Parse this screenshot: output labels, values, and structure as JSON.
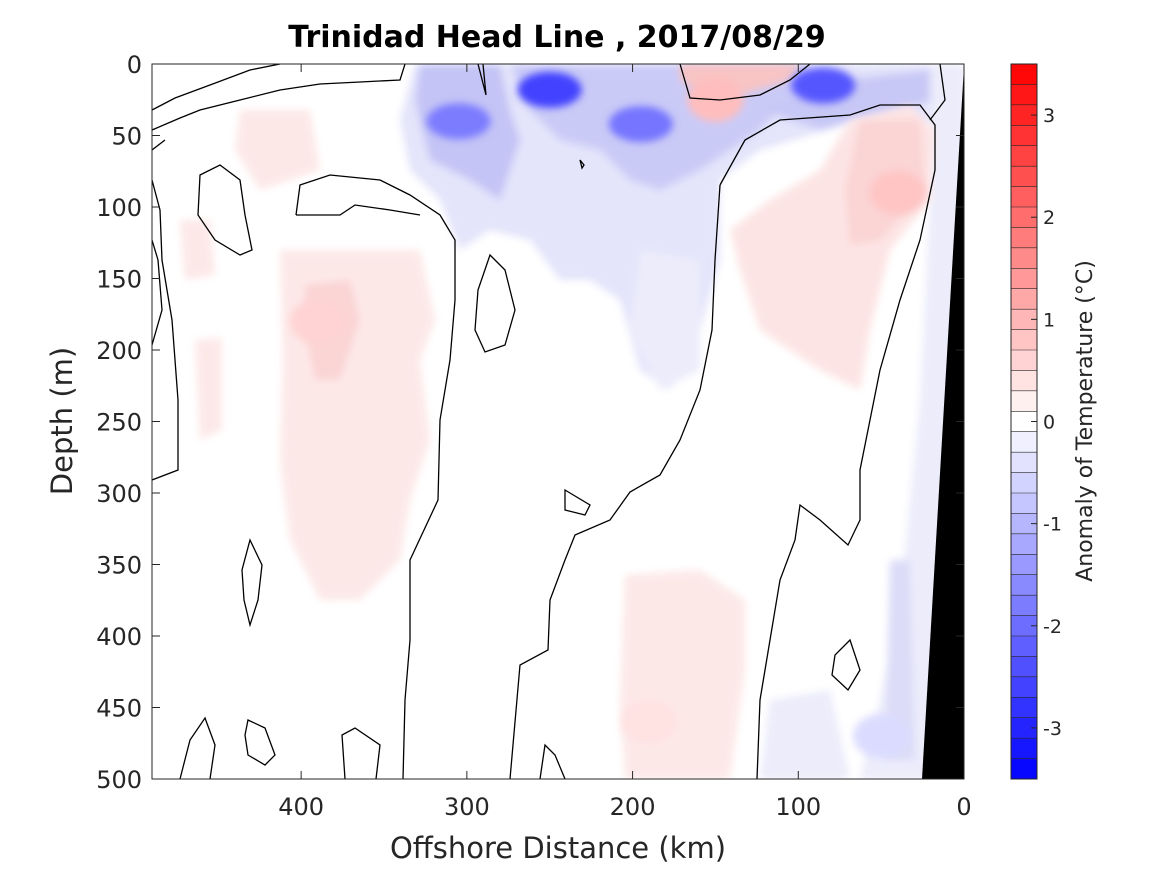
{
  "chart_data": {
    "type": "heatmap",
    "title": "Trinidad Head Line , 2017/08/29",
    "xlabel": "Offshore Distance (km)",
    "ylabel": "Depth (m)",
    "xlim": [
      490,
      0
    ],
    "ylim": [
      0,
      500
    ],
    "x_reversed": true,
    "y_reversed": true,
    "xticks": [
      400,
      300,
      200,
      100,
      0
    ],
    "yticks": [
      0,
      50,
      100,
      150,
      200,
      250,
      300,
      350,
      400,
      450,
      500
    ],
    "colorbar": {
      "label": "Anomaly of Temperature (°C)",
      "range": [
        -3.5,
        3.5
      ],
      "ticks": [
        3,
        2,
        1,
        0,
        -1,
        -2,
        -3
      ],
      "levels": 35,
      "cmap": "blue-white-red"
    },
    "contour_level": 0,
    "bottom_fill": "black",
    "anomaly_features": [
      {
        "x": 250,
        "depth": 18,
        "value": -2.6
      },
      {
        "x": 305,
        "depth": 40,
        "value": -1.8
      },
      {
        "x": 195,
        "depth": 42,
        "value": -1.9
      },
      {
        "x": 85,
        "depth": 15,
        "value": -2.3
      },
      {
        "x": 150,
        "depth": 25,
        "value": 0.9
      },
      {
        "x": 40,
        "depth": 90,
        "value": 0.8
      },
      {
        "x": 390,
        "depth": 180,
        "value": 0.6
      },
      {
        "x": 190,
        "depth": 460,
        "value": 0.4
      },
      {
        "x": 50,
        "depth": 470,
        "value": -0.5
      }
    ]
  },
  "labels": {
    "title": "Trinidad Head Line , 2017/08/29",
    "xlabel": "Offshore Distance (km)",
    "ylabel": "Depth (m)",
    "cblabel": "Anomaly of Temperature (°C)"
  },
  "xtick_labels": [
    "400",
    "300",
    "200",
    "100",
    "0"
  ],
  "ytick_labels": [
    "0",
    "50",
    "100",
    "150",
    "200",
    "250",
    "300",
    "350",
    "400",
    "450",
    "500"
  ],
  "cb_tick_labels": [
    "3",
    "2",
    "1",
    "0",
    "-1",
    "-2",
    "-3"
  ]
}
